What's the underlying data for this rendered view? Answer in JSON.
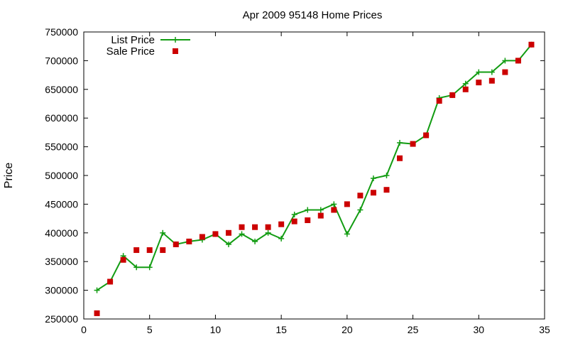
{
  "chart_data": {
    "type": "line",
    "title": "Apr 2009 95148 Home Prices",
    "xlabel": "",
    "ylabel": "Price",
    "xlim": [
      0,
      35
    ],
    "ylim": [
      250000,
      750000
    ],
    "xticks": [
      0,
      5,
      10,
      15,
      20,
      25,
      30,
      35
    ],
    "yticks": [
      250000,
      300000,
      350000,
      400000,
      450000,
      500000,
      550000,
      600000,
      650000,
      700000,
      750000
    ],
    "grid": false,
    "legend": "top-left",
    "x": [
      1,
      2,
      3,
      4,
      5,
      6,
      7,
      8,
      9,
      10,
      11,
      12,
      13,
      14,
      15,
      16,
      17,
      18,
      19,
      20,
      21,
      22,
      23,
      24,
      25,
      26,
      27,
      28,
      29,
      30,
      31,
      32,
      33,
      34
    ],
    "series": [
      {
        "name": "List Price",
        "style": "line+cross",
        "color": "#129c12",
        "values": [
          300000,
          315000,
          360000,
          340000,
          340000,
          400000,
          380000,
          385000,
          388000,
          398000,
          380000,
          398000,
          385000,
          400000,
          390000,
          432000,
          440000,
          440000,
          450000,
          398000,
          440000,
          495000,
          500000,
          557000,
          555000,
          570000,
          635000,
          640000,
          660000,
          680000,
          680000,
          700000,
          700000,
          728000
        ]
      },
      {
        "name": "Sale Price",
        "style": "square-points",
        "color": "#cc0000",
        "values": [
          260000,
          315000,
          353000,
          370000,
          370000,
          370000,
          380000,
          385000,
          393000,
          398000,
          400000,
          410000,
          410000,
          410000,
          415000,
          420000,
          422000,
          430000,
          440000,
          450000,
          465000,
          470000,
          475000,
          530000,
          555000,
          570000,
          630000,
          640000,
          650000,
          662000,
          665000,
          680000,
          700000,
          728000
        ]
      }
    ]
  }
}
